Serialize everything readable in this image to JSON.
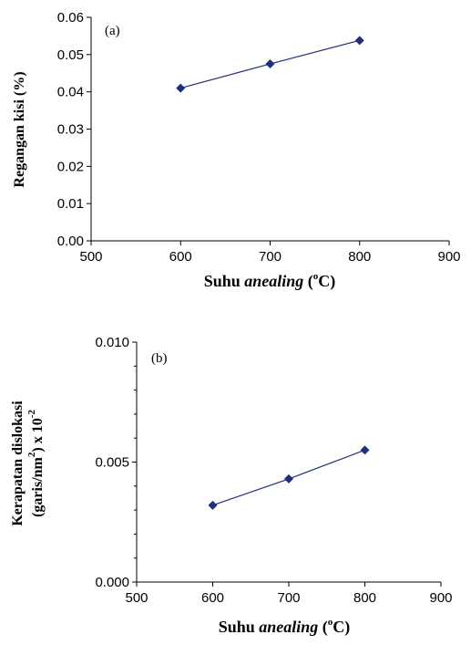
{
  "chart_data": [
    {
      "type": "line",
      "panel_label": "(a)",
      "x": [
        600,
        700,
        800
      ],
      "series": [
        {
          "values": [
            0.041,
            0.0475,
            0.0538
          ]
        }
      ],
      "xlim": [
        500,
        900
      ],
      "ylim": [
        0,
        0.06
      ],
      "xticks": [
        "500",
        "600",
        "700",
        "800",
        "900"
      ],
      "yticks": [
        "0.00",
        "0.01",
        "0.02",
        "0.03",
        "0.04",
        "0.05",
        "0.06"
      ],
      "xlabel": {
        "main": "Suhu",
        "italic": "anealing",
        "open": "(",
        "sup": "o",
        "close": "C)"
      },
      "ylabel": {
        "line1": "Regangan kisi (%)"
      },
      "marker": "diamond",
      "color": "#1f2f7a",
      "grid": false
    },
    {
      "type": "line",
      "panel_label": "(b)",
      "x": [
        600,
        700,
        800
      ],
      "series": [
        {
          "values": [
            0.0032,
            0.0043,
            0.0055
          ]
        }
      ],
      "xlim": [
        500,
        900
      ],
      "ylim": [
        0,
        0.01
      ],
      "xticks": [
        "500",
        "600",
        "700",
        "800",
        "900"
      ],
      "yticks": [
        "0.000",
        "0.005",
        "0.010"
      ],
      "xlabel": {
        "main": "Suhu",
        "italic": "anealing",
        "open": "(",
        "sup": "o",
        "close": "C)"
      },
      "ylabel": {
        "line1": "Kerapatan dislokasi",
        "line2_pre": "(garis/nm",
        "line2_sup": "2",
        "line2_mid": ") x 10",
        "line2_sup2": "-2"
      },
      "marker": "diamond",
      "color": "#1f2f7a",
      "grid": false
    }
  ]
}
